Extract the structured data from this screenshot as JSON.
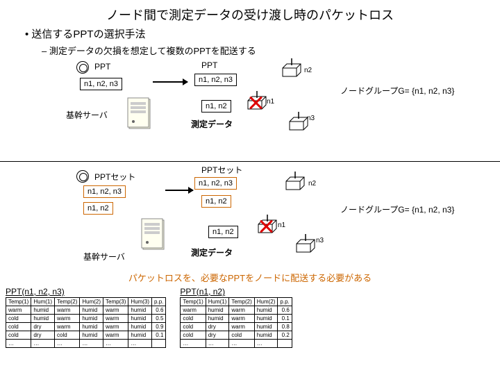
{
  "title": "ノード間で測定データの受け渡し時のパケットロス",
  "bullet1": "• 送信するPPTの選択手法",
  "bullet2": "– 測定データの欠損を想定して複数のPPTを配送する",
  "diagram1": {
    "ppt1": "PPT",
    "ppt2": "PPT",
    "box1": "n1, n2, n3",
    "box2": "n1, n2, n3",
    "box3": "n1, n2",
    "server_label": "基幹サーバ",
    "meas_label": "測定データ",
    "n1": "n1",
    "n2": "n2",
    "n3": "n3",
    "group": "ノードグループG= {n1, n2, n3}"
  },
  "diagram2": {
    "pptset1": "PPTセット",
    "pptset2": "PPTセット",
    "box1": "n1, n2, n3",
    "box2": "n1, n2",
    "box3": "n1, n2, n3",
    "box4": "n1, n2",
    "box5": "n1, n2",
    "server_label": "基幹サーバ",
    "meas_label": "測定データ",
    "n1": "n1",
    "n2": "n2",
    "n3": "n3",
    "group": "ノードグループG= {n1, n2, n3}"
  },
  "bottom_caption": "パケットロスを、必要なPPTをノードに配送する必要がある",
  "table1": {
    "title": "PPT(n1, n2, n3)",
    "columns": [
      "Temp(1)",
      "Hum(1)",
      "Temp(2)",
      "Hum(2)",
      "Temp(3)",
      "Hum(3)",
      "p.p."
    ],
    "rows": [
      [
        "warm",
        "humid",
        "warm",
        "humid",
        "warm",
        "humid",
        "0.6"
      ],
      [
        "cold",
        "humid",
        "warm",
        "humid",
        "warm",
        "humid",
        "0.5"
      ],
      [
        "cold",
        "dry",
        "warm",
        "humid",
        "warm",
        "humid",
        "0.9"
      ],
      [
        "cold",
        "dry",
        "cold",
        "humid",
        "warm",
        "humid",
        "0.1"
      ],
      [
        "…",
        "…",
        "…",
        "…",
        "…",
        "…",
        ""
      ]
    ]
  },
  "table2": {
    "title": "PPT(n1, n2)",
    "columns": [
      "Temp(1)",
      "Hum(1)",
      "Temp(2)",
      "Hum(2)",
      "p.p."
    ],
    "rows": [
      [
        "warm",
        "humid",
        "warm",
        "humid",
        "0.6"
      ],
      [
        "cold",
        "humid",
        "warm",
        "humid",
        "0.1"
      ],
      [
        "cold",
        "dry",
        "warm",
        "humid",
        "0.8"
      ],
      [
        "cold",
        "dry",
        "cold",
        "humid",
        "0.2"
      ],
      [
        "…",
        "…",
        "…",
        "…",
        ""
      ]
    ]
  },
  "colors": {
    "orange": "#cc6600",
    "red": "#d00000"
  }
}
